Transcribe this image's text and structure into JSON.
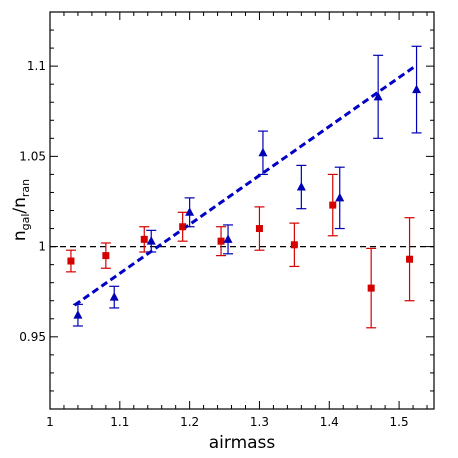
{
  "chart_data": {
    "type": "scatter",
    "title": "",
    "xlabel": "airmass",
    "ylabel": {
      "base": "n",
      "sub1": "gal",
      "sep": "/",
      "base2": "n",
      "sub2": "ran"
    },
    "xlim": [
      1.0,
      1.55
    ],
    "ylim": [
      0.91,
      1.13
    ],
    "x_ticks": [
      1,
      1.1,
      1.2,
      1.3,
      1.4,
      1.5
    ],
    "x_tick_labels": [
      "1",
      "1.1",
      "1.2",
      "1.3",
      "1.4",
      "1.5"
    ],
    "y_ticks": [
      0.95,
      1.0,
      1.05,
      1.1
    ],
    "y_tick_labels": [
      "0.95",
      "1",
      "1.05",
      "1.1"
    ],
    "grid": false,
    "reference_line": {
      "y": 1.0,
      "style": "dashed",
      "color": "#000000"
    },
    "fit_line": {
      "x": [
        1.035,
        1.525
      ],
      "y": [
        0.9675,
        1.1005
      ],
      "style": "dashed",
      "color": "#0000c8"
    },
    "series": [
      {
        "marker": "square",
        "color": "#d40000",
        "points": [
          {
            "x": 1.03,
            "y": 0.992,
            "err": 0.006
          },
          {
            "x": 1.08,
            "y": 0.995,
            "err": 0.007
          },
          {
            "x": 1.135,
            "y": 1.004,
            "err": 0.007
          },
          {
            "x": 1.19,
            "y": 1.011,
            "err": 0.008
          },
          {
            "x": 1.245,
            "y": 1.003,
            "err": 0.008
          },
          {
            "x": 1.3,
            "y": 1.01,
            "err": 0.012
          },
          {
            "x": 1.35,
            "y": 1.001,
            "err": 0.012
          },
          {
            "x": 1.405,
            "y": 1.023,
            "err": 0.017
          },
          {
            "x": 1.46,
            "y": 0.977,
            "err": 0.022
          },
          {
            "x": 1.515,
            "y": 0.993,
            "err": 0.023
          }
        ]
      },
      {
        "marker": "triangle",
        "color": "#0000b4",
        "points": [
          {
            "x": 1.04,
            "y": 0.962,
            "err": 0.006
          },
          {
            "x": 1.092,
            "y": 0.972,
            "err": 0.006
          },
          {
            "x": 1.145,
            "y": 1.003,
            "err": 0.006
          },
          {
            "x": 1.2,
            "y": 1.019,
            "err": 0.008
          },
          {
            "x": 1.255,
            "y": 1.004,
            "err": 0.008
          },
          {
            "x": 1.305,
            "y": 1.052,
            "err": 0.012
          },
          {
            "x": 1.36,
            "y": 1.033,
            "err": 0.012
          },
          {
            "x": 1.415,
            "y": 1.027,
            "err": 0.017
          },
          {
            "x": 1.47,
            "y": 1.083,
            "err": 0.023
          },
          {
            "x": 1.525,
            "y": 1.087,
            "err": 0.024
          }
        ]
      }
    ]
  }
}
